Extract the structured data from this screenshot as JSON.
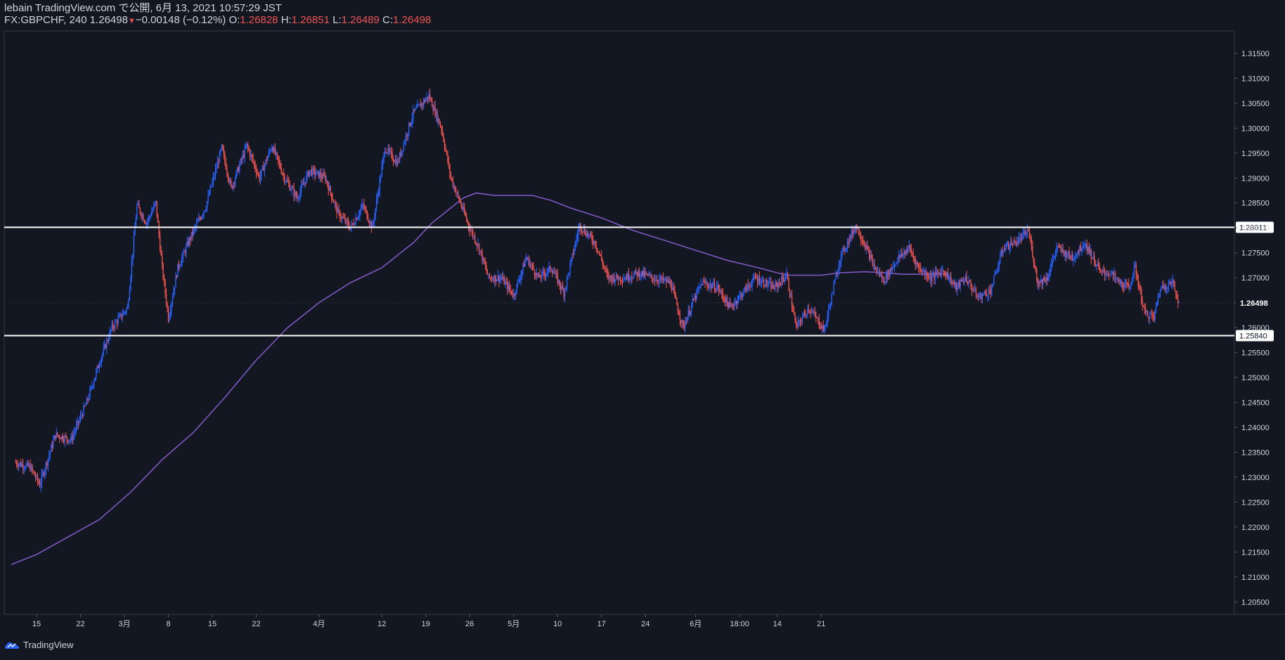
{
  "header": {
    "published": "lebain TradingView.com で公開, 6月 13, 2021 10:57:29 JST",
    "symbol": "FX:GBPCHF, 240",
    "last": "1.26498",
    "arrow": "▼",
    "change": "−0.00148 (−0.12%)",
    "o_label": "O:",
    "o": "1.26828",
    "h_label": "H:",
    "h": "1.26851",
    "l_label": "L:",
    "l": "1.26489",
    "c_label": "C:",
    "c": "1.26498"
  },
  "brand": {
    "name": "TradingView",
    "logo_icon": "tradingview-logo-icon"
  },
  "colors": {
    "background": "#131722",
    "up": "#2962ff",
    "down": "#ef5350",
    "ma": "#7e57c2",
    "hline": "#ffffff",
    "axis_text": "#d1d4dc",
    "grid": "#2a2e39"
  },
  "chart_data": {
    "type": "candlestick",
    "symbol": "FX:GBPCHF",
    "timeframe": "240",
    "ylim": [
      1.2025,
      1.3195
    ],
    "y_ticks": [
      "1.31500",
      "1.31000",
      "1.30500",
      "1.30000",
      "1.29500",
      "1.29000",
      "1.28500",
      "1.28000",
      "1.27500",
      "1.27000",
      "1.26500",
      "1.26000",
      "1.25500",
      "1.25000",
      "1.24500",
      "1.24000",
      "1.23500",
      "1.23000",
      "1.22500",
      "1.22000",
      "1.21500",
      "1.21000",
      "1.20500"
    ],
    "x_labels": [
      "15",
      "22",
      "3月",
      "8",
      "15",
      "22",
      "4月",
      "12",
      "19",
      "26",
      "5月",
      "10",
      "17",
      "24",
      "6月",
      "18:00",
      "14",
      "21"
    ],
    "x_label_days": [
      0,
      7,
      14,
      21,
      28,
      35,
      45,
      55,
      62,
      69,
      76,
      83,
      90,
      97,
      105,
      112,
      118,
      125
    ],
    "horizontal_lines": [
      {
        "value": 1.28011,
        "label": "1.28011"
      },
      {
        "value": 1.2584,
        "label": "1.25840"
      }
    ],
    "last_price": {
      "value": 1.26498,
      "label": "1.26498"
    },
    "price_path": [
      [
        -3.5,
        1.233
      ],
      [
        -1.0,
        1.232
      ],
      [
        0.5,
        1.2285
      ],
      [
        3.0,
        1.2385
      ],
      [
        5.5,
        1.2375
      ],
      [
        8.0,
        1.245
      ],
      [
        10.0,
        1.253
      ],
      [
        12.0,
        1.26
      ],
      [
        14.5,
        1.264
      ],
      [
        16.0,
        1.2845
      ],
      [
        17.5,
        1.281
      ],
      [
        19.0,
        1.285
      ],
      [
        20.0,
        1.272
      ],
      [
        21.0,
        1.262
      ],
      [
        22.5,
        1.272
      ],
      [
        24.5,
        1.278
      ],
      [
        27.0,
        1.2845
      ],
      [
        29.5,
        1.296
      ],
      [
        31.0,
        1.288
      ],
      [
        33.5,
        1.2965
      ],
      [
        35.5,
        1.29
      ],
      [
        37.5,
        1.2965
      ],
      [
        39.5,
        1.29
      ],
      [
        41.5,
        1.286
      ],
      [
        43.5,
        1.2915
      ],
      [
        46.0,
        1.29
      ],
      [
        48.0,
        1.283
      ],
      [
        50.0,
        1.28
      ],
      [
        52.0,
        1.2845
      ],
      [
        53.5,
        1.28
      ],
      [
        55.5,
        1.296
      ],
      [
        57.5,
        1.293
      ],
      [
        60.0,
        1.303
      ],
      [
        62.5,
        1.3065
      ],
      [
        64.5,
        1.3
      ],
      [
        66.0,
        1.29
      ],
      [
        67.5,
        1.285
      ],
      [
        69.0,
        1.28
      ],
      [
        70.5,
        1.276
      ],
      [
        72.0,
        1.27
      ],
      [
        74.0,
        1.27
      ],
      [
        76.0,
        1.2665
      ],
      [
        78.0,
        1.274
      ],
      [
        80.0,
        1.27
      ],
      [
        82.0,
        1.272
      ],
      [
        84.0,
        1.267
      ],
      [
        86.5,
        1.2805
      ],
      [
        89.0,
        1.277
      ],
      [
        91.0,
        1.27
      ],
      [
        93.5,
        1.27
      ],
      [
        96.0,
        1.271
      ],
      [
        98.0,
        1.27
      ],
      [
        101.0,
        1.269
      ],
      [
        103.0,
        1.26
      ],
      [
        104.5,
        1.265
      ],
      [
        106.0,
        1.269
      ],
      [
        108.5,
        1.268
      ],
      [
        110.5,
        1.264
      ],
      [
        112.5,
        1.267
      ],
      [
        114.5,
        1.27
      ],
      [
        117.5,
        1.268
      ],
      [
        119.5,
        1.2705
      ],
      [
        121.0,
        1.26
      ],
      [
        123.0,
        1.264
      ],
      [
        125.5,
        1.2595
      ],
      [
        128.0,
        1.274
      ],
      [
        130.5,
        1.2805
      ],
      [
        132.0,
        1.2765
      ],
      [
        133.5,
        1.272
      ],
      [
        135.0,
        1.2695
      ],
      [
        137.0,
        1.2735
      ],
      [
        139.0,
        1.276
      ],
      [
        140.5,
        1.272
      ],
      [
        142.5,
        1.27
      ],
      [
        144.5,
        1.2715
      ],
      [
        146.5,
        1.268
      ],
      [
        148.0,
        1.27
      ],
      [
        150.0,
        1.266
      ],
      [
        152.0,
        1.2675
      ],
      [
        154.0,
        1.276
      ],
      [
        156.5,
        1.2775
      ],
      [
        158.0,
        1.2795
      ],
      [
        159.5,
        1.269
      ],
      [
        161.0,
        1.27
      ],
      [
        162.5,
        1.276
      ],
      [
        165.0,
        1.274
      ],
      [
        167.0,
        1.277
      ],
      [
        169.5,
        1.271
      ],
      [
        171.0,
        1.271
      ],
      [
        172.5,
        1.269
      ],
      [
        174.0,
        1.268
      ],
      [
        175.0,
        1.272
      ],
      [
        176.5,
        1.263
      ],
      [
        178.0,
        1.262
      ],
      [
        179.0,
        1.268
      ],
      [
        181.0,
        1.269
      ],
      [
        182.0,
        1.265
      ]
    ],
    "moving_average": [
      [
        -4,
        1.2125
      ],
      [
        0,
        1.2145
      ],
      [
        5,
        1.218
      ],
      [
        10,
        1.2215
      ],
      [
        15,
        1.227
      ],
      [
        20,
        1.2335
      ],
      [
        25,
        1.239
      ],
      [
        30,
        1.246
      ],
      [
        35,
        1.2535
      ],
      [
        40,
        1.26
      ],
      [
        45,
        1.265
      ],
      [
        50,
        1.269
      ],
      [
        55,
        1.272
      ],
      [
        60,
        1.277
      ],
      [
        63,
        1.281
      ],
      [
        66,
        1.284
      ],
      [
        68,
        1.286
      ],
      [
        70,
        1.287
      ],
      [
        73,
        1.2865
      ],
      [
        76,
        1.2865
      ],
      [
        79,
        1.2865
      ],
      [
        82,
        1.2855
      ],
      [
        85,
        1.284
      ],
      [
        90,
        1.282
      ],
      [
        95,
        1.2795
      ],
      [
        100,
        1.2775
      ],
      [
        105,
        1.2755
      ],
      [
        110,
        1.2735
      ],
      [
        115,
        1.272
      ],
      [
        118,
        1.271
      ],
      [
        120,
        1.2705
      ],
      [
        125,
        1.2705
      ],
      [
        128,
        1.271
      ],
      [
        132,
        1.2712
      ],
      [
        135,
        1.271
      ],
      [
        138,
        1.2707
      ],
      [
        141,
        1.2707
      ],
      [
        145,
        1.2708
      ]
    ]
  }
}
